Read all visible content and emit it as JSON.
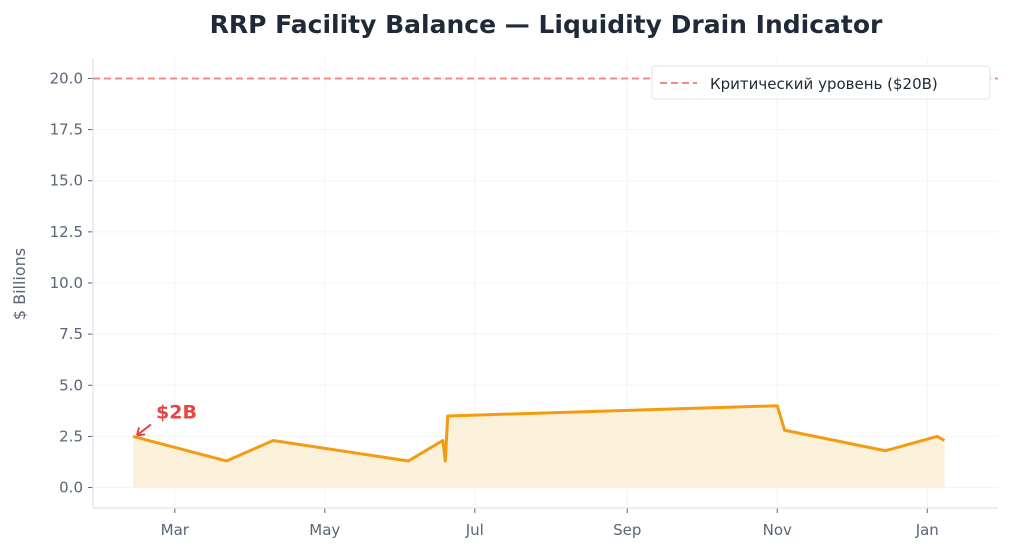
{
  "chart_data": {
    "type": "area",
    "title": "RRP Facility Balance — Liquidity Drain Indicator",
    "xlabel": "",
    "ylabel": "$ Billions",
    "x_ticks": [
      "Mar",
      "May",
      "Jul",
      "Sep",
      "Nov",
      "Jan"
    ],
    "y_ticks": [
      "0.0",
      "2.5",
      "5.0",
      "7.5",
      "10.0",
      "12.5",
      "15.0",
      "17.5",
      "20.0"
    ],
    "ylim": [
      -1,
      21
    ],
    "grid": true,
    "legend_position": "top-right",
    "series": [
      {
        "values": [
          {
            "x": "Feb 12",
            "y": 2.5
          },
          {
            "x": "Mar 22",
            "y": 1.3
          },
          {
            "x": "Apr 10",
            "y": 2.3
          },
          {
            "x": "Jun 4",
            "y": 1.3
          },
          {
            "x": "Jun 18",
            "y": 2.3
          },
          {
            "x": "Jun 19",
            "y": 1.3
          },
          {
            "x": "Jun 20",
            "y": 3.5
          },
          {
            "x": "Nov 1",
            "y": 4.0
          },
          {
            "x": "Nov 4",
            "y": 2.8
          },
          {
            "x": "Dec 15",
            "y": 1.8
          },
          {
            "x": "Jan 5",
            "y": 2.5
          },
          {
            "x": "Jan 8",
            "y": 2.3
          }
        ]
      }
    ],
    "reference_line": {
      "y": 20,
      "label": "Критический уровень ($20B)",
      "color": "#f28b82"
    },
    "annotation": {
      "text": "$2B",
      "x": "Feb 12",
      "y": 2.5,
      "color": "#e64545"
    },
    "colors": {
      "line": "#f39c12",
      "fill": "#fbeed6",
      "grid": "#f2f4f7",
      "axis": "#dfe3ea"
    }
  }
}
